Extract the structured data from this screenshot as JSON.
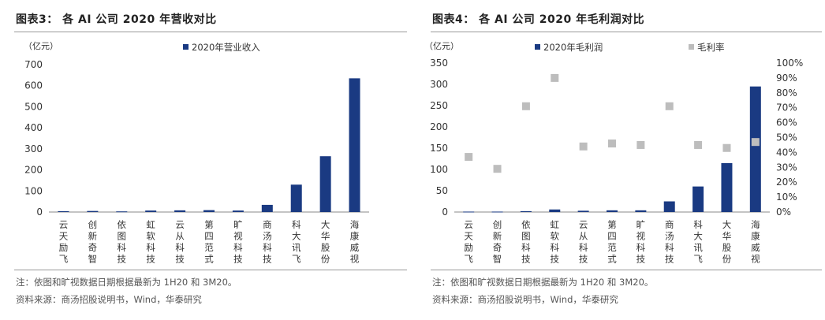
{
  "chart_data": [
    {
      "type": "bar",
      "title": "图表3： 各 AI 公司 2020 年营收对比",
      "unit": "（亿元）",
      "categories": [
        "云天励飞",
        "创新奇智",
        "依图科技",
        "虹软科技",
        "云从科技",
        "第四范式",
        "旷视科技",
        "商汤科技",
        "科大讯飞",
        "大华股份",
        "海康威视"
      ],
      "series": [
        {
          "name": "2020年营业收入",
          "values": [
            4,
            5,
            3,
            7,
            8,
            9,
            7,
            34,
            130,
            265,
            635
          ],
          "color": "#1a3a82"
        }
      ],
      "ylim": [
        0,
        700
      ],
      "yticks": [
        0,
        100,
        200,
        300,
        400,
        500,
        600,
        700
      ],
      "legend": "top"
    },
    {
      "type": "bar",
      "title": "图表4： 各 AI 公司 2020 年毛利润对比",
      "unit": "（亿元）",
      "categories": [
        "云天励飞",
        "创新奇智",
        "依图科技",
        "虹软科技",
        "云从科技",
        "第四范式",
        "旷视科技",
        "商汤科技",
        "科大讯飞",
        "大华股份",
        "海康威视"
      ],
      "series": [
        {
          "name": "2020年毛利润",
          "values": [
            1,
            1,
            2,
            6,
            3,
            4,
            4,
            25,
            60,
            115,
            295
          ],
          "color": "#1a3a82",
          "axis": "left"
        },
        {
          "name": "毛利率",
          "values": [
            37,
            29,
            71,
            90,
            44,
            46,
            45,
            71,
            45,
            43,
            47
          ],
          "color": "#bdbdbd",
          "axis": "right",
          "marker": "square"
        }
      ],
      "ylim": [
        0,
        350
      ],
      "yticks": [
        0,
        50,
        100,
        150,
        200,
        250,
        300,
        350
      ],
      "y2lim": [
        0,
        100
      ],
      "y2ticks": [
        "0%",
        "10%",
        "20%",
        "30%",
        "40%",
        "50%",
        "60%",
        "70%",
        "80%",
        "90%",
        "100%"
      ],
      "legend": "top"
    }
  ],
  "notes": {
    "left": [
      "注：依图和旷视数据日期根据最新为 1H20 和 3M20。",
      "资料来源：商汤招股说明书，Wind，华泰研究"
    ],
    "right": [
      "注：依图和旷视数据日期根据最新为 1H20 和 3M20。",
      "资料来源：商汤招股说明书，Wind，华泰研究"
    ]
  }
}
